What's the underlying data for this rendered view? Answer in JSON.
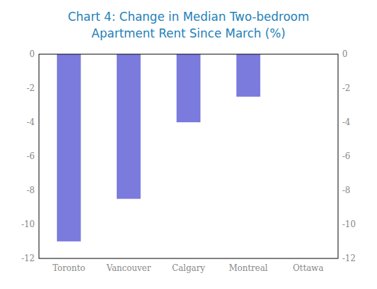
{
  "chart_data": {
    "type": "bar",
    "title": "Chart 4: Change in Median Two-bedroom",
    "subtitle": "Apartment Rent Since March (%)",
    "categories": [
      "Toronto",
      "Vancouver",
      "Calgary",
      "Montreal",
      "Ottawa"
    ],
    "values": [
      -11.0,
      -8.5,
      -4.0,
      -2.5,
      0.0
    ],
    "color": "#7b7bdd",
    "ylim": [
      -12,
      0
    ],
    "yticks": [
      0,
      -2,
      -4,
      -6,
      -8,
      -10,
      -12
    ],
    "y2lim": [
      -12,
      0
    ],
    "y2ticks": [
      0,
      -2,
      -4,
      -6,
      -8,
      -10,
      -12
    ],
    "grid": false
  }
}
